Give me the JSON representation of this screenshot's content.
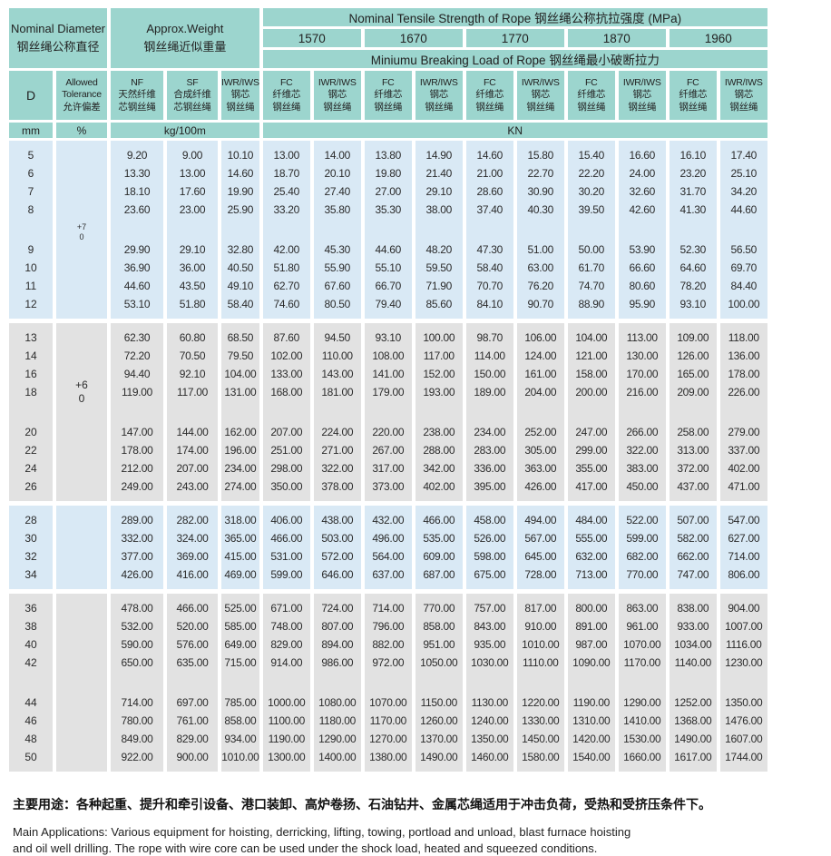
{
  "table": {
    "header": {
      "nominal_diameter": "Nominal Diameter\n钢丝绳公称直径",
      "approx_weight": "Approx.Weight\n钢丝绳近似重量",
      "tensile_title": "Nominal Tensile Strength of Rope  钢丝绳公称抗拉强度 (MPa)",
      "grades": [
        "1570",
        "1670",
        "1770",
        "1870",
        "1960"
      ],
      "breaking_load_title": "Miniumu Breaking Load of Rope  钢丝绳最小破断拉力",
      "col_d": "D",
      "col_tolerance": "Allowed\nTolerance\n允许偏差",
      "col_nf": "NF\n天然纤维\n芯钢丝绳",
      "col_sf": "SF\n合成纤维\n芯钢丝绳",
      "col_iwr": "IWR/IWS\n钢芯\n钢丝绳",
      "col_fc": "FC\n纤维芯\n钢丝绳",
      "unit_mm": "mm",
      "unit_percent": "%",
      "unit_kg": "kg/100m",
      "unit_kn": "KN"
    },
    "bands": [
      {
        "color": "blue",
        "tolerance": "+7\n0",
        "tol_pos": "top",
        "groups": [
          [
            [
              "5",
              "9.20",
              "9.00",
              "10.10",
              "13.00",
              "14.00",
              "13.80",
              "14.90",
              "14.60",
              "15.80",
              "15.40",
              "16.60",
              "16.10",
              "17.40"
            ],
            [
              "6",
              "13.30",
              "13.00",
              "14.60",
              "18.70",
              "20.10",
              "19.80",
              "21.40",
              "21.00",
              "22.70",
              "22.20",
              "24.00",
              "23.20",
              "25.10"
            ],
            [
              "7",
              "18.10",
              "17.60",
              "19.90",
              "25.40",
              "27.40",
              "27.00",
              "29.10",
              "28.60",
              "30.90",
              "30.20",
              "32.60",
              "31.70",
              "34.20"
            ],
            [
              "8",
              "23.60",
              "23.00",
              "25.90",
              "33.20",
              "35.80",
              "35.30",
              "38.00",
              "37.40",
              "40.30",
              "39.50",
              "42.60",
              "41.30",
              "44.60"
            ]
          ],
          [
            [
              "9",
              "29.90",
              "29.10",
              "32.80",
              "42.00",
              "45.30",
              "44.60",
              "48.20",
              "47.30",
              "51.00",
              "50.00",
              "53.90",
              "52.30",
              "56.50"
            ],
            [
              "10",
              "36.90",
              "36.00",
              "40.50",
              "51.80",
              "55.90",
              "55.10",
              "59.50",
              "58.40",
              "63.00",
              "61.70",
              "66.60",
              "64.60",
              "69.70"
            ],
            [
              "11",
              "44.60",
              "43.50",
              "49.10",
              "62.70",
              "67.60",
              "66.70",
              "71.90",
              "70.70",
              "76.20",
              "74.70",
              "80.60",
              "78.20",
              "84.40"
            ],
            [
              "12",
              "53.10",
              "51.80",
              "58.40",
              "74.60",
              "80.50",
              "79.40",
              "85.60",
              "84.10",
              "90.70",
              "88.90",
              "95.90",
              "93.10",
              "100.00"
            ]
          ]
        ]
      },
      {
        "color": "gray",
        "tolerance": "+6\n0",
        "tol_pos": "lower",
        "groups": [
          [
            [
              "13",
              "62.30",
              "60.80",
              "68.50",
              "87.60",
              "94.50",
              "93.10",
              "100.00",
              "98.70",
              "106.00",
              "104.00",
              "113.00",
              "109.00",
              "118.00"
            ],
            [
              "14",
              "72.20",
              "70.50",
              "79.50",
              "102.00",
              "110.00",
              "108.00",
              "117.00",
              "114.00",
              "124.00",
              "121.00",
              "130.00",
              "126.00",
              "136.00"
            ],
            [
              "16",
              "94.40",
              "92.10",
              "104.00",
              "133.00",
              "143.00",
              "141.00",
              "152.00",
              "150.00",
              "161.00",
              "158.00",
              "170.00",
              "165.00",
              "178.00"
            ],
            [
              "18",
              "119.00",
              "117.00",
              "131.00",
              "168.00",
              "181.00",
              "179.00",
              "193.00",
              "189.00",
              "204.00",
              "200.00",
              "216.00",
              "209.00",
              "226.00"
            ]
          ],
          [
            [
              "20",
              "147.00",
              "144.00",
              "162.00",
              "207.00",
              "224.00",
              "220.00",
              "238.00",
              "234.00",
              "252.00",
              "247.00",
              "266.00",
              "258.00",
              "279.00"
            ],
            [
              "22",
              "178.00",
              "174.00",
              "196.00",
              "251.00",
              "271.00",
              "267.00",
              "288.00",
              "283.00",
              "305.00",
              "299.00",
              "322.00",
              "313.00",
              "337.00"
            ],
            [
              "24",
              "212.00",
              "207.00",
              "234.00",
              "298.00",
              "322.00",
              "317.00",
              "342.00",
              "336.00",
              "363.00",
              "355.00",
              "383.00",
              "372.00",
              "402.00"
            ],
            [
              "26",
              "249.00",
              "243.00",
              "274.00",
              "350.00",
              "378.00",
              "373.00",
              "402.00",
              "395.00",
              "426.00",
              "417.00",
              "450.00",
              "437.00",
              "471.00"
            ]
          ]
        ]
      },
      {
        "color": "blue",
        "tolerance": "",
        "tol_pos": "",
        "groups": [
          [
            [
              "28",
              "289.00",
              "282.00",
              "318.00",
              "406.00",
              "438.00",
              "432.00",
              "466.00",
              "458.00",
              "494.00",
              "484.00",
              "522.00",
              "507.00",
              "547.00"
            ],
            [
              "30",
              "332.00",
              "324.00",
              "365.00",
              "466.00",
              "503.00",
              "496.00",
              "535.00",
              "526.00",
              "567.00",
              "555.00",
              "599.00",
              "582.00",
              "627.00"
            ],
            [
              "32",
              "377.00",
              "369.00",
              "415.00",
              "531.00",
              "572.00",
              "564.00",
              "609.00",
              "598.00",
              "645.00",
              "632.00",
              "682.00",
              "662.00",
              "714.00"
            ],
            [
              "34",
              "426.00",
              "416.00",
              "469.00",
              "599.00",
              "646.00",
              "637.00",
              "687.00",
              "675.00",
              "728.00",
              "713.00",
              "770.00",
              "747.00",
              "806.00"
            ]
          ]
        ]
      },
      {
        "color": "gray",
        "tolerance": "",
        "tol_pos": "",
        "groups": [
          [
            [
              "36",
              "478.00",
              "466.00",
              "525.00",
              "671.00",
              "724.00",
              "714.00",
              "770.00",
              "757.00",
              "817.00",
              "800.00",
              "863.00",
              "838.00",
              "904.00"
            ],
            [
              "38",
              "532.00",
              "520.00",
              "585.00",
              "748.00",
              "807.00",
              "796.00",
              "858.00",
              "843.00",
              "910.00",
              "891.00",
              "961.00",
              "933.00",
              "1007.00"
            ],
            [
              "40",
              "590.00",
              "576.00",
              "649.00",
              "829.00",
              "894.00",
              "882.00",
              "951.00",
              "935.00",
              "1010.00",
              "987.00",
              "1070.00",
              "1034.00",
              "1116.00"
            ],
            [
              "42",
              "650.00",
              "635.00",
              "715.00",
              "914.00",
              "986.00",
              "972.00",
              "1050.00",
              "1030.00",
              "1110.00",
              "1090.00",
              "1170.00",
              "1140.00",
              "1230.00"
            ]
          ],
          [
            [
              "44",
              "714.00",
              "697.00",
              "785.00",
              "1000.00",
              "1080.00",
              "1070.00",
              "1150.00",
              "1130.00",
              "1220.00",
              "1190.00",
              "1290.00",
              "1252.00",
              "1350.00"
            ],
            [
              "46",
              "780.00",
              "761.00",
              "858.00",
              "1100.00",
              "1180.00",
              "1170.00",
              "1260.00",
              "1240.00",
              "1330.00",
              "1310.00",
              "1410.00",
              "1368.00",
              "1476.00"
            ],
            [
              "48",
              "849.00",
              "829.00",
              "934.00",
              "1190.00",
              "1290.00",
              "1270.00",
              "1370.00",
              "1350.00",
              "1450.00",
              "1420.00",
              "1530.00",
              "1490.00",
              "1607.00"
            ],
            [
              "50",
              "922.00",
              "900.00",
              "1010.00",
              "1300.00",
              "1400.00",
              "1380.00",
              "1490.00",
              "1460.00",
              "1580.00",
              "1540.00",
              "1660.00",
              "1617.00",
              "1744.00"
            ]
          ]
        ]
      }
    ]
  },
  "footer": {
    "zh": "主要用途：各种起重、提升和牵引设备、港口装卸、高炉卷扬、石油钻井、金属芯绳适用于冲击负荷，受热和受挤压条件下。",
    "en": "Main Applications: Various equipment for hoisting, derricking, lifting, towing, portload and unload, blast furnace hoisting\nand oil well drilling. The rope with wire core can be used under the shock load, heated and squeezed conditions."
  },
  "colors": {
    "header_teal": "#9cd5ce",
    "band_blue": "#d9e9f5",
    "band_gray": "#e2e2e2"
  }
}
